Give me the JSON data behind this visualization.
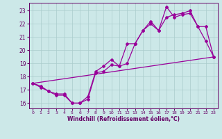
{
  "background_color": "#cce8e8",
  "line_color": "#990099",
  "grid_color": "#aacccc",
  "xlabel": "Windchill (Refroidissement éolien,°C)",
  "xlabel_color": "#660066",
  "tick_color": "#660066",
  "xlim": [
    -0.5,
    23.5
  ],
  "ylim": [
    15.6,
    23.6
  ],
  "yticks": [
    16,
    17,
    18,
    19,
    20,
    21,
    22,
    23
  ],
  "xticks": [
    0,
    1,
    2,
    3,
    4,
    5,
    6,
    7,
    8,
    9,
    10,
    11,
    12,
    13,
    14,
    15,
    16,
    17,
    18,
    19,
    20,
    21,
    22,
    23
  ],
  "line1_x": [
    0,
    1,
    2,
    3,
    4,
    5,
    6,
    7,
    8,
    9,
    10,
    11,
    12,
    13,
    14,
    15,
    16,
    17,
    18,
    19,
    20,
    21,
    22,
    23
  ],
  "line1_y": [
    17.5,
    17.3,
    16.9,
    16.7,
    16.7,
    16.0,
    16.0,
    16.3,
    18.3,
    18.4,
    18.9,
    18.8,
    20.5,
    20.5,
    21.5,
    22.2,
    21.5,
    23.3,
    22.5,
    22.7,
    22.8,
    21.8,
    21.8,
    19.5
  ],
  "line2_x": [
    0,
    1,
    2,
    3,
    4,
    5,
    6,
    7,
    8,
    9,
    10,
    11,
    12,
    13,
    14,
    15,
    16,
    17,
    18,
    19,
    20,
    21,
    22,
    23
  ],
  "line2_y": [
    17.5,
    17.2,
    16.9,
    16.6,
    16.6,
    16.0,
    16.0,
    16.5,
    18.4,
    18.8,
    19.3,
    18.8,
    19.0,
    20.5,
    21.5,
    22.0,
    21.5,
    22.5,
    22.7,
    22.8,
    23.0,
    21.8,
    20.7,
    19.5
  ],
  "line3_x": [
    0,
    23
  ],
  "line3_y": [
    17.5,
    19.5
  ],
  "marker": "D",
  "markersize": 2.0,
  "linewidth": 0.9
}
